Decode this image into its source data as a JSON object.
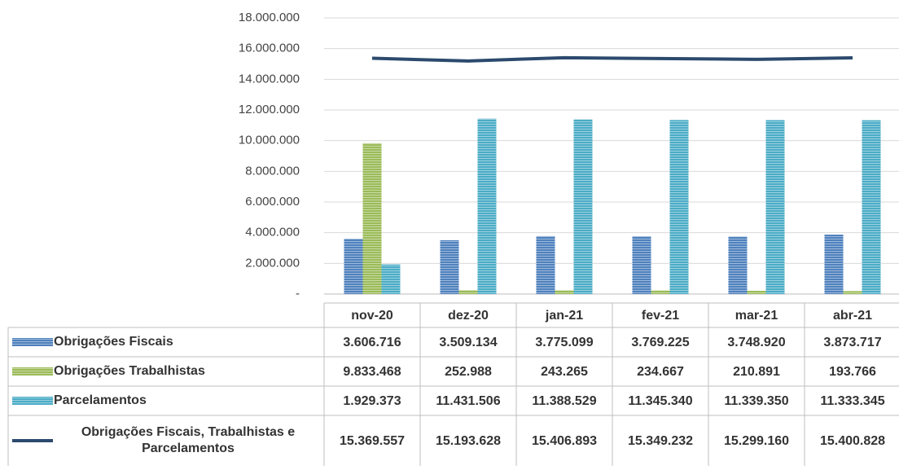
{
  "chart_data": {
    "type": "bar",
    "categories": [
      "nov-20",
      "dez-20",
      "jan-21",
      "fev-21",
      "mar-21",
      "abr-21"
    ],
    "series": [
      {
        "name": "Obrigações Fiscais",
        "color": "#4f81bd",
        "values": [
          3606716,
          3509134,
          3775099,
          3769225,
          3748920,
          3873717
        ],
        "value_labels": [
          "3.606.716",
          "3.509.134",
          "3.775.099",
          "3.769.225",
          "3.748.920",
          "3.873.717"
        ]
      },
      {
        "name": "Obrigações Trabalhistas",
        "color": "#9bbb59",
        "values": [
          9833468,
          252988,
          243265,
          234667,
          210891,
          193766
        ],
        "value_labels": [
          "9.833.468",
          "252.988",
          "243.265",
          "234.667",
          "210.891",
          "193.766"
        ]
      },
      {
        "name": "Parcelamentos",
        "color": "#4bacc6",
        "values": [
          1929373,
          11431506,
          11388529,
          11345340,
          11339350,
          11333345
        ],
        "value_labels": [
          "1.929.373",
          "11.431.506",
          "11.388.529",
          "11.345.340",
          "11.339.350",
          "11.333.345"
        ]
      },
      {
        "name": "Obrigações Fiscais, Trabalhistas e Parcelamentos",
        "color": "#2c4a6e",
        "type": "line",
        "values": [
          15369557,
          15193628,
          15406893,
          15349232,
          15299160,
          15400828
        ],
        "value_labels": [
          "15.369.557",
          "15.193.628",
          "15.406.893",
          "15.349.232",
          "15.299.160",
          "15.400.828"
        ]
      }
    ],
    "ylim": [
      0,
      18000000
    ],
    "yticks": [
      {
        "value": 0,
        "label": "-"
      },
      {
        "value": 2000000,
        "label": "2.000.000"
      },
      {
        "value": 4000000,
        "label": "4.000.000"
      },
      {
        "value": 6000000,
        "label": "6.000.000"
      },
      {
        "value": 8000000,
        "label": "8.000.000"
      },
      {
        "value": 10000000,
        "label": "10.000.000"
      },
      {
        "value": 12000000,
        "label": "12.000.000"
      },
      {
        "value": 14000000,
        "label": "14.000.000"
      },
      {
        "value": 16000000,
        "label": "16.000.000"
      },
      {
        "value": 18000000,
        "label": "18.000.000"
      }
    ],
    "grid": true
  }
}
